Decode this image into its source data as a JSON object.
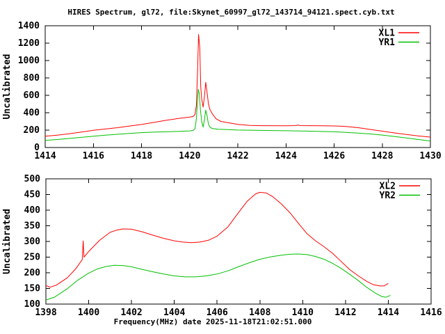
{
  "title": "HIRES Spectrum, gl72, file:Skynet_60997_gl72_143714_94121.spect.cyb.txt",
  "xlabel": "Frequency(MHz) date 2025-11-18T21:02:51.000",
  "colors": {
    "background": "#ffffff",
    "frame": "#000000",
    "text": "#000000",
    "xl_series": "#ff0000",
    "yr_series": "#00c000"
  },
  "chart_data": [
    {
      "type": "line",
      "ylabel": "Uncalibrated",
      "xlim": [
        1414,
        1430
      ],
      "ylim": [
        0,
        1400
      ],
      "x_ticks": [
        1414,
        1416,
        1418,
        1420,
        1422,
        1424,
        1426,
        1428,
        1430
      ],
      "y_ticks": [
        0,
        200,
        400,
        600,
        800,
        1000,
        1200,
        1400
      ],
      "grid": false,
      "legend_position": "top-right",
      "series": [
        {
          "name": "XL1",
          "color": "#ff0000",
          "points": [
            [
              1414,
              130
            ],
            [
              1414.5,
              142
            ],
            [
              1415,
              158
            ],
            [
              1415.5,
              178
            ],
            [
              1416,
              198
            ],
            [
              1416.5,
              213
            ],
            [
              1417,
              228
            ],
            [
              1417.5,
              247
            ],
            [
              1418,
              265
            ],
            [
              1418.5,
              288
            ],
            [
              1419,
              312
            ],
            [
              1419.5,
              333
            ],
            [
              1420,
              350
            ],
            [
              1420.15,
              357
            ],
            [
              1420.22,
              380
            ],
            [
              1420.28,
              480
            ],
            [
              1420.33,
              900
            ],
            [
              1420.37,
              1300
            ],
            [
              1420.42,
              1150
            ],
            [
              1420.46,
              700
            ],
            [
              1420.5,
              560
            ],
            [
              1420.56,
              465
            ],
            [
              1420.62,
              600
            ],
            [
              1420.67,
              750
            ],
            [
              1420.72,
              640
            ],
            [
              1420.78,
              500
            ],
            [
              1420.85,
              430
            ],
            [
              1420.95,
              385
            ],
            [
              1421.1,
              330
            ],
            [
              1421.3,
              300
            ],
            [
              1421.6,
              285
            ],
            [
              1422,
              266
            ],
            [
              1422.5,
              254
            ],
            [
              1423,
              251
            ],
            [
              1424,
              250
            ],
            [
              1424.4,
              252
            ],
            [
              1424.5,
              258
            ],
            [
              1424.6,
              252
            ],
            [
              1425,
              251
            ],
            [
              1425.5,
              250
            ],
            [
              1426,
              248
            ],
            [
              1426.4,
              244
            ],
            [
              1427,
              228
            ],
            [
              1427.5,
              208
            ],
            [
              1428,
              188
            ],
            [
              1428.5,
              168
            ],
            [
              1429,
              150
            ],
            [
              1429.5,
              133
            ],
            [
              1430,
              120
            ]
          ]
        },
        {
          "name": "YR1",
          "color": "#00c000",
          "points": [
            [
              1414,
              82
            ],
            [
              1414.5,
              92
            ],
            [
              1415,
              104
            ],
            [
              1415.5,
              117
            ],
            [
              1416,
              130
            ],
            [
              1416.5,
              142
            ],
            [
              1417,
              152
            ],
            [
              1417.5,
              162
            ],
            [
              1418,
              171
            ],
            [
              1418.5,
              177
            ],
            [
              1419,
              181
            ],
            [
              1419.5,
              185
            ],
            [
              1420,
              191
            ],
            [
              1420.15,
              197
            ],
            [
              1420.22,
              215
            ],
            [
              1420.28,
              330
            ],
            [
              1420.33,
              560
            ],
            [
              1420.36,
              670
            ],
            [
              1420.4,
              620
            ],
            [
              1420.45,
              430
            ],
            [
              1420.5,
              300
            ],
            [
              1420.56,
              235
            ],
            [
              1420.62,
              330
            ],
            [
              1420.67,
              430
            ],
            [
              1420.72,
              370
            ],
            [
              1420.78,
              270
            ],
            [
              1420.85,
              232
            ],
            [
              1420.95,
              218
            ],
            [
              1421.2,
              210
            ],
            [
              1421.6,
              206
            ],
            [
              1422,
              201
            ],
            [
              1423,
              197
            ],
            [
              1424,
              193
            ],
            [
              1425,
              188
            ],
            [
              1426,
              181
            ],
            [
              1426.5,
              174
            ],
            [
              1427,
              166
            ],
            [
              1427.5,
              156
            ],
            [
              1428,
              143
            ],
            [
              1428.5,
              127
            ],
            [
              1429,
              110
            ],
            [
              1429.5,
              92
            ],
            [
              1430,
              75
            ]
          ]
        }
      ]
    },
    {
      "type": "line",
      "ylabel": "Uncalibrated",
      "xlim": [
        1398,
        1416
      ],
      "ylim": [
        100,
        500
      ],
      "x_ticks": [
        1398,
        1400,
        1402,
        1404,
        1406,
        1408,
        1410,
        1412,
        1414,
        1416
      ],
      "y_ticks": [
        100,
        150,
        200,
        250,
        300,
        350,
        400,
        450,
        500
      ],
      "grid": false,
      "legend_position": "top-right",
      "series": [
        {
          "name": "XL2",
          "color": "#ff0000",
          "points": [
            [
              1398,
              159
            ],
            [
              1398.2,
              154
            ],
            [
              1398.5,
              161
            ],
            [
              1399,
              184
            ],
            [
              1399.4,
              213
            ],
            [
              1399.7,
              242
            ],
            [
              1399.74,
              302
            ],
            [
              1399.78,
              250
            ],
            [
              1400,
              268
            ],
            [
              1400.5,
              303
            ],
            [
              1401,
              329
            ],
            [
              1401.3,
              336
            ],
            [
              1401.6,
              340
            ],
            [
              1402,
              339
            ],
            [
              1402.5,
              331
            ],
            [
              1403,
              320
            ],
            [
              1403.5,
              310
            ],
            [
              1404,
              302
            ],
            [
              1404.4,
              298
            ],
            [
              1404.8,
              296
            ],
            [
              1405.2,
              298
            ],
            [
              1405.6,
              304
            ],
            [
              1406,
              317
            ],
            [
              1406.5,
              346
            ],
            [
              1407,
              392
            ],
            [
              1407.4,
              428
            ],
            [
              1407.8,
              452
            ],
            [
              1408,
              457
            ],
            [
              1408.3,
              455
            ],
            [
              1408.6,
              443
            ],
            [
              1409,
              420
            ],
            [
              1409.4,
              392
            ],
            [
              1409.8,
              358
            ],
            [
              1410.2,
              325
            ],
            [
              1410.6,
              302
            ],
            [
              1411,
              283
            ],
            [
              1411.4,
              262
            ],
            [
              1411.8,
              236
            ],
            [
              1412.2,
              210
            ],
            [
              1412.6,
              190
            ],
            [
              1413,
              172
            ],
            [
              1413.3,
              162
            ],
            [
              1413.6,
              158
            ],
            [
              1413.8,
              158
            ],
            [
              1414,
              166
            ]
          ]
        },
        {
          "name": "YR2",
          "color": "#00c000",
          "points": [
            [
              1398,
              113
            ],
            [
              1398.4,
              122
            ],
            [
              1399,
              149
            ],
            [
              1399.5,
              177
            ],
            [
              1400,
              199
            ],
            [
              1400.4,
              212
            ],
            [
              1400.8,
              220
            ],
            [
              1401.2,
              224
            ],
            [
              1401.6,
              223
            ],
            [
              1402,
              219
            ],
            [
              1402.5,
              211
            ],
            [
              1403,
              203
            ],
            [
              1403.5,
              196
            ],
            [
              1404,
              190
            ],
            [
              1404.5,
              187
            ],
            [
              1405,
              187
            ],
            [
              1405.5,
              190
            ],
            [
              1406,
              196
            ],
            [
              1406.5,
              206
            ],
            [
              1407,
              219
            ],
            [
              1407.5,
              232
            ],
            [
              1408,
              243
            ],
            [
              1408.5,
              251
            ],
            [
              1409,
              256
            ],
            [
              1409.4,
              259
            ],
            [
              1409.8,
              260
            ],
            [
              1410.2,
              258
            ],
            [
              1410.6,
              252
            ],
            [
              1411,
              243
            ],
            [
              1411.4,
              230
            ],
            [
              1411.8,
              214
            ],
            [
              1412.2,
              195
            ],
            [
              1412.6,
              175
            ],
            [
              1413,
              153
            ],
            [
              1413.4,
              135
            ],
            [
              1413.7,
              124
            ],
            [
              1413.9,
              122
            ],
            [
              1414.1,
              128
            ]
          ]
        }
      ]
    }
  ]
}
